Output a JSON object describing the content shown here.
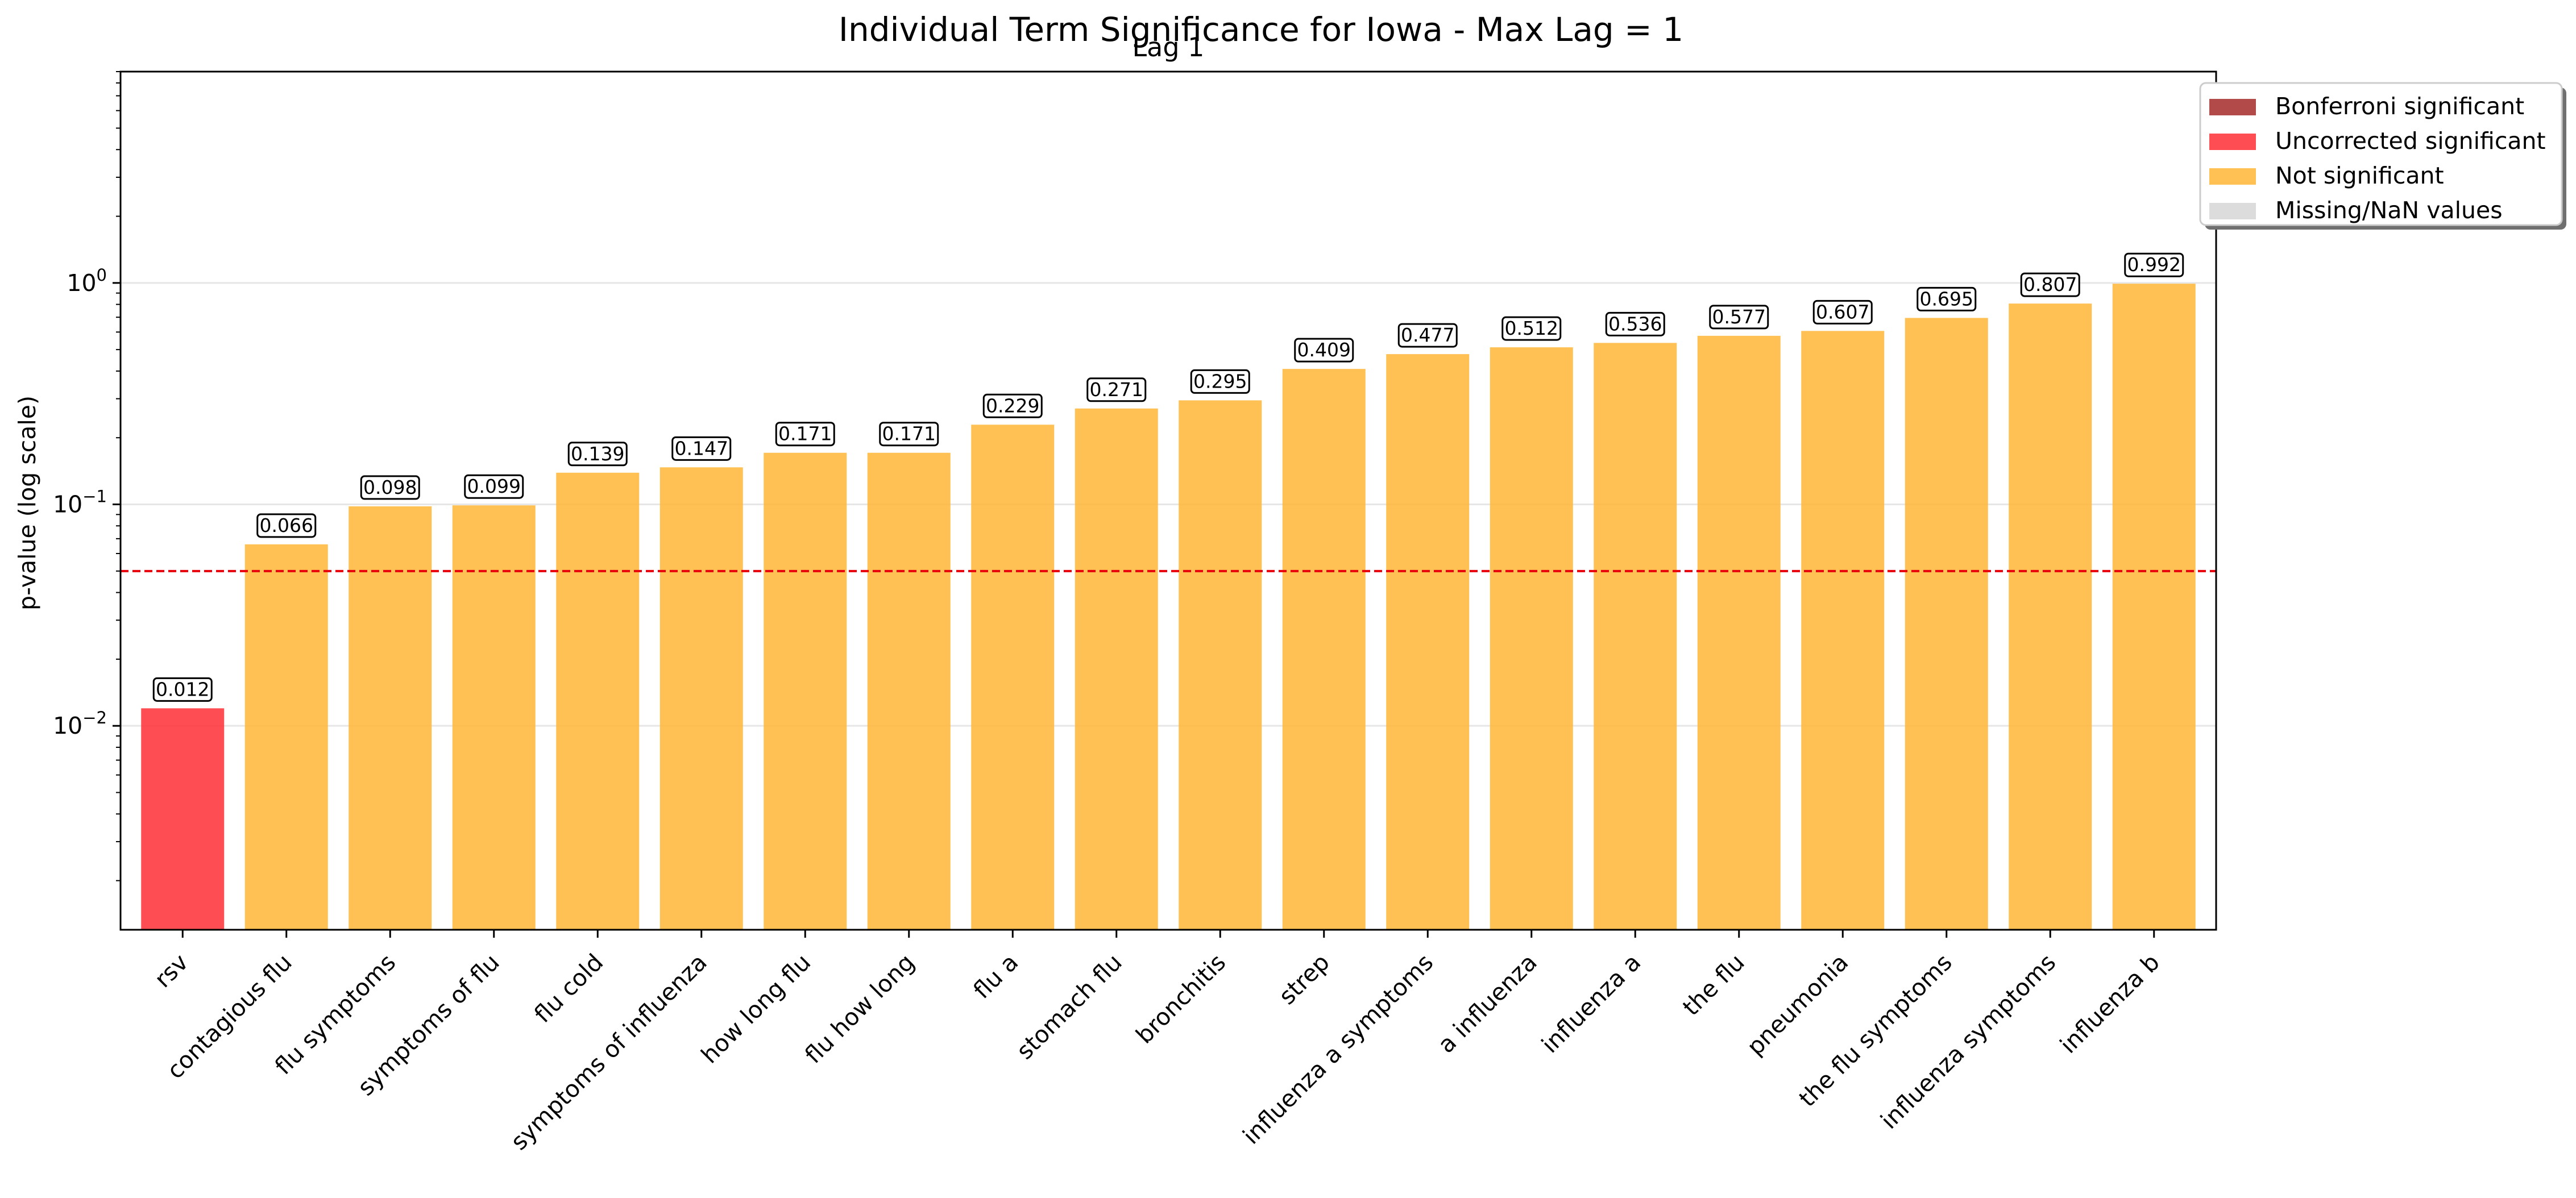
{
  "chart_data": {
    "type": "bar",
    "title": "Individual Term Significance for Iowa - Max Lag = 1",
    "subtitle": "Lag 1",
    "xlabel": "",
    "ylabel": "p-value (log scale)",
    "yscale": "log",
    "ylim": [
      0.0012,
      9.0
    ],
    "yticks": [
      0.01,
      0.1,
      1
    ],
    "ytick_labels": [
      {
        "base": "10",
        "exp": "−2"
      },
      {
        "base": "10",
        "exp": "−1"
      },
      {
        "base": "10",
        "exp": "0"
      }
    ],
    "threshold": 0.05,
    "threshold_color": "#e8000b",
    "grid": true,
    "legend_position": "top-right (outside plot)",
    "categories": [
      "rsv",
      "contagious flu",
      "flu symptoms",
      "symptoms of flu",
      "flu cold",
      "symptoms of influenza",
      "how long flu",
      "flu how long",
      "flu a",
      "stomach flu",
      "bronchitis",
      "strep",
      "influenza a symptoms",
      "a influenza",
      "influenza a",
      "the flu",
      "pneumonia",
      "the flu symptoms",
      "influenza symptoms",
      "influenza b"
    ],
    "values": [
      0.012,
      0.066,
      0.098,
      0.099,
      0.139,
      0.147,
      0.171,
      0.171,
      0.229,
      0.271,
      0.295,
      0.409,
      0.477,
      0.512,
      0.536,
      0.577,
      0.607,
      0.695,
      0.807,
      0.992
    ],
    "value_labels": [
      "0.012",
      "0.066",
      "0.098",
      "0.099",
      "0.139",
      "0.147",
      "0.171",
      "0.171",
      "0.229",
      "0.271",
      "0.295",
      "0.409",
      "0.477",
      "0.512",
      "0.536",
      "0.577",
      "0.607",
      "0.695",
      "0.807",
      "0.992"
    ],
    "status": [
      "uncorrected",
      "not",
      "not",
      "not",
      "not",
      "not",
      "not",
      "not",
      "not",
      "not",
      "not",
      "not",
      "not",
      "not",
      "not",
      "not",
      "not",
      "not",
      "not",
      "not"
    ],
    "colors": {
      "bonferroni": "#a52a2a",
      "uncorrected": "#ff2f35",
      "not": "#ffb536",
      "missing": "#d3d3d3"
    },
    "legend": [
      {
        "key": "bonferroni",
        "label": "Bonferroni significant"
      },
      {
        "key": "uncorrected",
        "label": "Uncorrected significant"
      },
      {
        "key": "not",
        "label": "Not significant"
      },
      {
        "key": "missing",
        "label": "Missing/NaN values"
      }
    ]
  }
}
